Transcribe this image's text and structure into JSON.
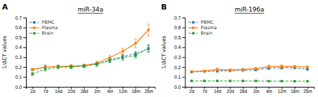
{
  "chart_data": [
    {
      "type": "line",
      "title": "miR-34a",
      "annotations": [
        "A"
      ],
      "y_label": "1/ΔCT values",
      "categories": [
        "2d",
        "7d",
        "14d",
        "20d",
        "28d",
        "2m",
        "4m",
        "12m",
        "18m",
        "25m"
      ],
      "series": [
        {
          "name": "PBMC",
          "line_style": "dashed",
          "marker": "square",
          "values": [
            0.175,
            0.2,
            0.205,
            0.205,
            0.21,
            0.23,
            0.27,
            0.305,
            0.335,
            0.385
          ],
          "errors": [
            0.01,
            0.02,
            0.015,
            0.015,
            0.015,
            0.02,
            0.025,
            0.025,
            0.025,
            0.035
          ]
        },
        {
          "name": "Plasma",
          "line_style": "solid",
          "marker": "square",
          "values": [
            0.175,
            0.2,
            0.205,
            0.21,
            0.215,
            0.24,
            0.295,
            0.36,
            0.44,
            0.575
          ],
          "errors": [
            0.01,
            0.018,
            0.015,
            0.015,
            0.015,
            0.02,
            0.025,
            0.03,
            0.045,
            0.06
          ]
        },
        {
          "name": "Brain",
          "line_style": "dashed",
          "marker": "square",
          "values": [
            0.13,
            0.18,
            0.2,
            0.2,
            0.21,
            0.23,
            0.265,
            0.295,
            0.315,
            0.39
          ],
          "errors": [
            0.015,
            0.02,
            0.015,
            0.015,
            0.015,
            0.018,
            0.02,
            0.025,
            0.025,
            0.035
          ]
        }
      ],
      "ylim": [
        0,
        0.7
      ],
      "yticks": [
        {
          "value": 0,
          "label": "0.0"
        },
        0.1,
        0.2,
        0.3,
        0.4,
        0.5,
        0.6,
        0.7
      ],
      "grid": false,
      "legend": "upper left"
    },
    {
      "type": "line",
      "title": "miR-196a",
      "annotations": [
        "B"
      ],
      "y_label": "1/ΔCT values",
      "categories": [
        "2d",
        "7d",
        "14d",
        "20d",
        "28d",
        "2m",
        "4m",
        "12m",
        "18m",
        "25m"
      ],
      "series": [
        {
          "name": "PBMC",
          "line_style": "dashed",
          "marker": "square",
          "values": [
            0.15,
            0.155,
            0.16,
            0.163,
            0.168,
            0.172,
            0.19,
            0.192,
            0.193,
            0.178
          ],
          "errors": [
            0.008,
            0.008,
            0.012,
            0.01,
            0.01,
            0.01,
            0.015,
            0.012,
            0.01,
            0.01
          ]
        },
        {
          "name": "Plasma",
          "line_style": "solid",
          "marker": "square",
          "values": [
            0.155,
            0.16,
            0.175,
            0.17,
            0.175,
            0.185,
            0.205,
            0.207,
            0.205,
            0.2
          ],
          "errors": [
            0.008,
            0.01,
            0.015,
            0.012,
            0.012,
            0.012,
            0.015,
            0.015,
            0.012,
            0.012
          ]
        },
        {
          "name": "Brain",
          "line_style": "dashed",
          "marker": "square",
          "values": [
            0.06,
            0.06,
            0.06,
            0.06,
            0.06,
            0.06,
            0.058,
            0.058,
            0.057,
            0.057
          ],
          "errors": [
            0.003,
            0.003,
            0.003,
            0.003,
            0.003,
            0.003,
            0.003,
            0.003,
            0.003,
            0.003
          ]
        }
      ],
      "ylim": [
        0,
        0.7
      ],
      "yticks": [
        {
          "value": 0,
          "label": "0.0"
        },
        0.1,
        0.2,
        0.3,
        0.4,
        0.5,
        0.6,
        0.7
      ],
      "grid": false,
      "legend": "upper left"
    }
  ]
}
